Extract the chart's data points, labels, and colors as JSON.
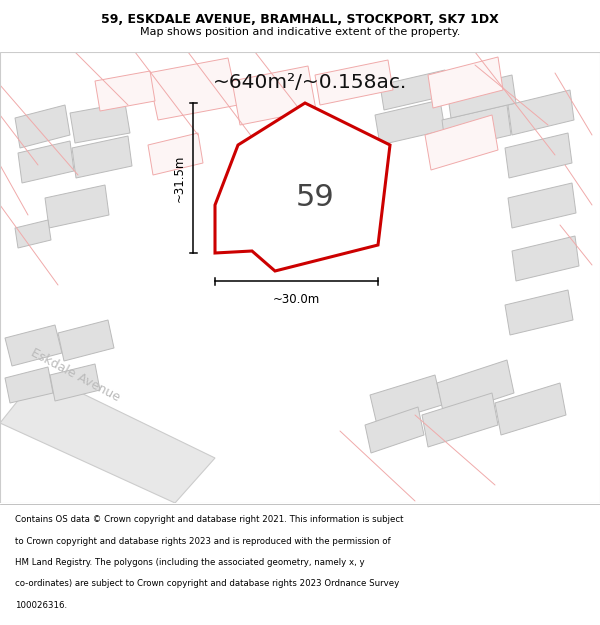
{
  "title_line1": "59, ESKDALE AVENUE, BRAMHALL, STOCKPORT, SK7 1DX",
  "title_line2": "Map shows position and indicative extent of the property.",
  "area_label": "~640m²/~0.158ac.",
  "width_label": "~30.0m",
  "height_label": "~31.5m",
  "number_label": "59",
  "road_label": "Eskdale Avenue",
  "footer_lines": [
    "Contains OS data © Crown copyright and database right 2021. This information is subject",
    "to Crown copyright and database rights 2023 and is reproduced with the permission of",
    "HM Land Registry. The polygons (including the associated geometry, namely x, y",
    "co-ordinates) are subject to Crown copyright and database rights 2023 Ordnance Survey",
    "100026316."
  ],
  "bg_color": "#ffffff",
  "map_bg_color": "#f0f0f0",
  "plot_fill_color": "#ffffff",
  "plot_edge_color": "#cc0000",
  "building_fill": "#e0e0e0",
  "building_stroke": "#bbbbbb",
  "dim_line_color": "#000000",
  "road_label_color": "#aaaaaa",
  "other_building_stroke": "#f0aaaa",
  "other_building_fill": "#fdf5f5"
}
